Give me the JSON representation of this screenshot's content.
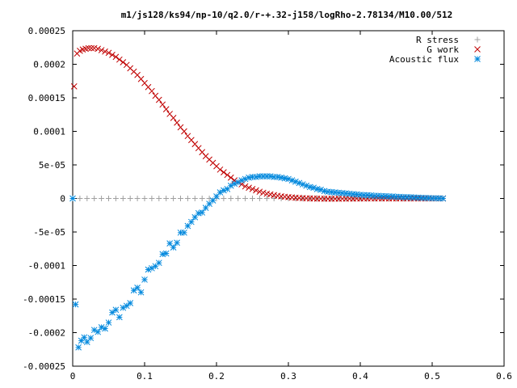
{
  "chart_data": {
    "type": "scatter",
    "title": "m1/js128/ks94/np-10/q2.0/r-+.32-j158/logRho-2.78134/M10.00/512",
    "xlabel": "",
    "ylabel": "",
    "xlim": [
      0,
      0.6
    ],
    "ylim": [
      -0.00025,
      0.00025
    ],
    "grid": false,
    "legend_position": "top-right",
    "x_ticks": [
      "0",
      "0.1",
      "0.2",
      "0.3",
      "0.4",
      "0.5",
      "0.6"
    ],
    "x_tick_values": [
      0,
      0.1,
      0.2,
      0.3,
      0.4,
      0.5,
      0.6
    ],
    "y_ticks": [
      "0.00025",
      "0.0002",
      "0.00015",
      "0.0001",
      "5e-05",
      "0",
      "-5e-05",
      "-0.0001",
      "-0.00015",
      "-0.0002",
      "-0.00025"
    ],
    "y_tick_values": [
      0.00025,
      0.0002,
      0.00015,
      0.0001,
      5e-05,
      0,
      -5e-05,
      -0.0001,
      -0.00015,
      -0.0002,
      -0.00025
    ],
    "series": [
      {
        "name": "R stress",
        "marker": "plus",
        "color": "#a0a0a0",
        "x": [
          0.0,
          0.01,
          0.02,
          0.03,
          0.04,
          0.05,
          0.06,
          0.07,
          0.08,
          0.09,
          0.1,
          0.11,
          0.12,
          0.13,
          0.14,
          0.15,
          0.16,
          0.17,
          0.18,
          0.19,
          0.2,
          0.21,
          0.22,
          0.23,
          0.24,
          0.25,
          0.26,
          0.27,
          0.28,
          0.29,
          0.3,
          0.31,
          0.32,
          0.33,
          0.34,
          0.35,
          0.36,
          0.37,
          0.38,
          0.39,
          0.4,
          0.41,
          0.42,
          0.43,
          0.44,
          0.45,
          0.46,
          0.47,
          0.48,
          0.49,
          0.5,
          0.51
        ],
        "y": [
          0,
          0,
          0,
          0,
          0,
          0,
          0,
          0,
          0,
          0,
          0,
          0,
          0,
          0,
          0,
          0,
          0,
          0,
          0,
          0,
          0,
          0,
          0,
          0,
          0,
          0,
          0,
          0,
          0,
          0,
          0,
          0,
          0,
          0,
          0,
          0,
          0,
          0,
          0,
          0,
          0,
          0,
          0,
          0,
          0,
          0,
          0,
          0,
          0,
          0,
          0,
          0
        ]
      },
      {
        "name": "G work",
        "marker": "cross",
        "color": "#c00000",
        "x": [
          0.002,
          0.006,
          0.01,
          0.014,
          0.018,
          0.022,
          0.026,
          0.03,
          0.035,
          0.04,
          0.045,
          0.05,
          0.055,
          0.06,
          0.065,
          0.07,
          0.075,
          0.08,
          0.085,
          0.09,
          0.095,
          0.1,
          0.105,
          0.11,
          0.115,
          0.12,
          0.125,
          0.13,
          0.135,
          0.14,
          0.145,
          0.15,
          0.155,
          0.16,
          0.165,
          0.17,
          0.175,
          0.18,
          0.185,
          0.19,
          0.195,
          0.2,
          0.205,
          0.21,
          0.215,
          0.22,
          0.225,
          0.23,
          0.235,
          0.24,
          0.245,
          0.25,
          0.255,
          0.26,
          0.265,
          0.27,
          0.275,
          0.28,
          0.285,
          0.29,
          0.295,
          0.3,
          0.305,
          0.31,
          0.315,
          0.32,
          0.325,
          0.33,
          0.335,
          0.34,
          0.345,
          0.35,
          0.355,
          0.36,
          0.365,
          0.37,
          0.375,
          0.38,
          0.385,
          0.39,
          0.395,
          0.4,
          0.405,
          0.41,
          0.415,
          0.42,
          0.425,
          0.43,
          0.435,
          0.44,
          0.445,
          0.45,
          0.455,
          0.46,
          0.465,
          0.47,
          0.475,
          0.48,
          0.485,
          0.49,
          0.495,
          0.5,
          0.505,
          0.51,
          0.515
        ],
        "y": [
          0.000167,
          0.000216,
          0.00022,
          0.000222,
          0.000223,
          0.000224,
          0.000224,
          0.000224,
          0.000223,
          0.000221,
          0.000219,
          0.000217,
          0.000214,
          0.000211,
          0.000207,
          0.000203,
          0.000199,
          0.000194,
          0.000189,
          0.000184,
          0.000178,
          0.000172,
          0.000166,
          0.00016,
          0.000153,
          0.000147,
          0.00014,
          0.000133,
          0.000126,
          0.00012,
          0.000113,
          0.000106,
          0.0001,
          9.3e-05,
          8.7e-05,
          8.1e-05,
          7.5e-05,
          6.9e-05,
          6.3e-05,
          5.8e-05,
          5.3e-05,
          4.8e-05,
          4.3e-05,
          3.9e-05,
          3.5e-05,
          3.1e-05,
          2.7e-05,
          2.4e-05,
          2.1e-05,
          1.8e-05,
          1.6e-05,
          1.4e-05,
          1.2e-05,
          1e-05,
          8.5e-06,
          7e-06,
          6e-06,
          5e-06,
          4e-06,
          3.2e-06,
          2.5e-06,
          2e-06,
          1.5e-06,
          1.1e-06,
          8e-07,
          5e-07,
          2e-07,
          0,
          -2e-07,
          -3e-07,
          -4e-07,
          -5e-07,
          -5e-07,
          -5e-07,
          -5e-07,
          -5e-07,
          -4e-07,
          -4e-07,
          -3e-07,
          -3e-07,
          -2e-07,
          -2e-07,
          -2e-07,
          -1e-07,
          -1e-07,
          -1e-07,
          0,
          0,
          0,
          0,
          0,
          0,
          0,
          0,
          0,
          0,
          0,
          0,
          0,
          0,
          0,
          0,
          0,
          0,
          0
        ]
      },
      {
        "name": "Acoustic flux",
        "marker": "star",
        "color": "#0088dd",
        "x": [
          0.0,
          0.004,
          0.008,
          0.012,
          0.016,
          0.02,
          0.025,
          0.03,
          0.035,
          0.04,
          0.045,
          0.05,
          0.055,
          0.06,
          0.065,
          0.07,
          0.075,
          0.08,
          0.085,
          0.09,
          0.095,
          0.1,
          0.105,
          0.11,
          0.115,
          0.12,
          0.125,
          0.13,
          0.135,
          0.14,
          0.145,
          0.15,
          0.155,
          0.16,
          0.165,
          0.17,
          0.175,
          0.18,
          0.185,
          0.19,
          0.195,
          0.2,
          0.205,
          0.21,
          0.215,
          0.22,
          0.225,
          0.23,
          0.235,
          0.24,
          0.245,
          0.25,
          0.255,
          0.26,
          0.265,
          0.27,
          0.275,
          0.28,
          0.285,
          0.29,
          0.295,
          0.3,
          0.305,
          0.31,
          0.315,
          0.32,
          0.325,
          0.33,
          0.335,
          0.34,
          0.345,
          0.35,
          0.355,
          0.36,
          0.365,
          0.37,
          0.375,
          0.38,
          0.385,
          0.39,
          0.395,
          0.4,
          0.405,
          0.41,
          0.415,
          0.42,
          0.425,
          0.43,
          0.435,
          0.44,
          0.445,
          0.45,
          0.455,
          0.46,
          0.465,
          0.47,
          0.475,
          0.48,
          0.485,
          0.49,
          0.495,
          0.5,
          0.505,
          0.51,
          0.515
        ],
        "y": [
          0,
          -0.000158,
          -0.000222,
          -0.000212,
          -0.000207,
          -0.000214,
          -0.000208,
          -0.000196,
          -0.000199,
          -0.000192,
          -0.000194,
          -0.000185,
          -0.00017,
          -0.000166,
          -0.000177,
          -0.000163,
          -0.00016,
          -0.000156,
          -0.000137,
          -0.000133,
          -0.00014,
          -0.000121,
          -0.000106,
          -0.000104,
          -0.000101,
          -9.6e-05,
          -8.3e-05,
          -8.2e-05,
          -6.7e-05,
          -7.3e-05,
          -6.6e-05,
          -5.1e-05,
          -5.1e-05,
          -4.1e-05,
          -3.5e-05,
          -2.8e-05,
          -2.2e-05,
          -2.1e-05,
          -1.4e-05,
          -8e-06,
          -3e-06,
          3e-06,
          9e-06,
          1.2e-05,
          1.4e-05,
          1.9e-05,
          2.2e-05,
          2.4e-05,
          2.7e-05,
          2.9e-05,
          3.1e-05,
          3.2e-05,
          3.2e-05,
          3.3e-05,
          3.3e-05,
          3.3e-05,
          3.3e-05,
          3.2e-05,
          3.2e-05,
          3.1e-05,
          3e-05,
          2.9e-05,
          2.7e-05,
          2.5e-05,
          2.3e-05,
          2.1e-05,
          1.9e-05,
          1.7e-05,
          1.6e-05,
          1.4e-05,
          1.3e-05,
          1.1e-05,
          1e-05,
          9.5e-06,
          9e-06,
          8.5e-06,
          8e-06,
          7.5e-06,
          7e-06,
          6.5e-06,
          6e-06,
          5.5e-06,
          5e-06,
          5e-06,
          4.5e-06,
          4e-06,
          4e-06,
          3.5e-06,
          3.5e-06,
          3e-06,
          3e-06,
          2.5e-06,
          2.5e-06,
          2e-06,
          2e-06,
          1.8e-06,
          1.5e-06,
          1.2e-06,
          1e-06,
          8e-07,
          6e-07,
          4e-07,
          3e-07,
          2e-07,
          0
        ]
      }
    ]
  }
}
